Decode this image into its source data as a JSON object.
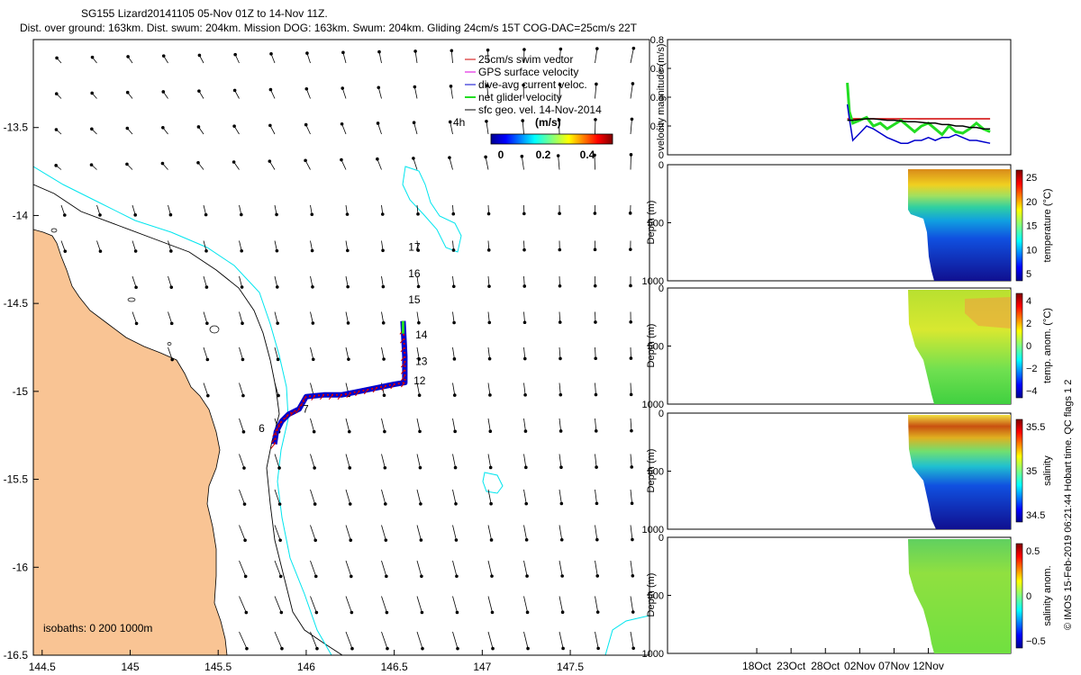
{
  "title_line1": "SG155 Lizard20141105 05-Nov 01Z to 14-Nov 11Z.",
  "title_line2": "Dist. over ground: 163km. Dist. swum: 204km. Mission DOG: 163km. Swum: 204km. Gliding 24cm/s 15T COG-DAC=25cm/s 22T",
  "colors": {
    "land": "#f9c494",
    "reef": "#00e5ee",
    "track": "#d00000",
    "dac": "#0000cc",
    "net": "#22dd22",
    "geo": "#000000"
  },
  "chart_data": [
    {
      "type": "scatter",
      "name": "map",
      "x_ticks": [
        "144.5",
        "145",
        "145.5",
        "146",
        "146.5",
        "147",
        "147.5"
      ],
      "y_ticks": [
        "-13.5",
        "-14",
        "-14.5",
        "-15",
        "-15.5",
        "-16",
        "-16.5"
      ],
      "xlim": [
        144.45,
        147.95
      ],
      "ylim": [
        -16.5,
        -13.0
      ],
      "legend": [
        {
          "label": "25cm/s swim vector",
          "color": "#d00000"
        },
        {
          "label": "GPS surface velocity",
          "color": "#dd00dd"
        },
        {
          "label": "dive-avg current veloc.",
          "color": "#0000cc"
        },
        {
          "label": "net glider velocity",
          "color": "#22dd22"
        },
        {
          "label": "sfc geo. vel. 14-Nov-2014",
          "color": "#000000"
        }
      ],
      "legend_position": "top-right",
      "legend_extra": "4h",
      "colorbar_title": "(m/s)",
      "colorbar_ticks": [
        "0",
        "0.2",
        "0.4"
      ],
      "isobath_note": "isobaths: 0   200   1000m",
      "track_lon": [
        145.82,
        145.83,
        145.86,
        145.9,
        145.96,
        146.0,
        146.1,
        146.2,
        146.3,
        146.4,
        146.5,
        146.56,
        146.56,
        146.555,
        146.55
      ],
      "track_lat": [
        -15.3,
        -15.23,
        -15.17,
        -15.13,
        -15.1,
        -15.03,
        -15.02,
        -15.02,
        -15.0,
        -14.98,
        -14.96,
        -14.95,
        -14.8,
        -14.7,
        -14.6
      ],
      "day_labels": [
        {
          "text": "6",
          "lon": 145.73,
          "lat": -15.23
        },
        {
          "text": "7",
          "lon": 145.98,
          "lat": -15.12
        },
        {
          "text": "12",
          "lon": 146.61,
          "lat": -14.96
        },
        {
          "text": "13",
          "lon": 146.62,
          "lat": -14.85
        },
        {
          "text": "14",
          "lon": 146.62,
          "lat": -14.7
        },
        {
          "text": "15",
          "lon": 146.58,
          "lat": -14.5
        },
        {
          "text": "16",
          "lon": 146.58,
          "lat": -14.35
        },
        {
          "text": "17",
          "lon": 146.58,
          "lat": -14.2
        }
      ]
    },
    {
      "type": "line",
      "name": "velocity",
      "ylabel": "velocity magnitude (m/s)",
      "y_ticks": [
        "0",
        "0.2",
        "0.4",
        "0.6",
        "0.8"
      ],
      "ylim": [
        0,
        0.8
      ],
      "x": [
        26.2,
        26.5,
        27,
        28,
        29,
        30,
        31,
        32,
        33,
        34,
        35,
        36,
        37,
        38,
        39,
        40,
        41,
        42,
        43,
        44,
        45,
        46,
        47
      ],
      "series": [
        {
          "color": "#d00000",
          "values": [
            0.25,
            0.25,
            0.25,
            0.25,
            0.25,
            0.25,
            0.25,
            0.25,
            0.25,
            0.25,
            0.25,
            0.25,
            0.25,
            0.25,
            0.25,
            0.25,
            0.25,
            0.25,
            0.25,
            0.25,
            0.25,
            0.25,
            0.25
          ]
        },
        {
          "color": "#22dd22",
          "values": [
            0.5,
            0.3,
            0.22,
            0.24,
            0.26,
            0.2,
            0.22,
            0.18,
            0.21,
            0.24,
            0.2,
            0.16,
            0.2,
            0.22,
            0.18,
            0.14,
            0.2,
            0.16,
            0.15,
            0.18,
            0.22,
            0.18,
            0.16
          ]
        },
        {
          "color": "#0000cc",
          "values": [
            0.35,
            0.25,
            0.1,
            0.15,
            0.2,
            0.18,
            0.15,
            0.12,
            0.1,
            0.08,
            0.08,
            0.1,
            0.1,
            0.12,
            0.1,
            0.12,
            0.12,
            0.14,
            0.12,
            0.1,
            0.1,
            0.09,
            0.08
          ]
        },
        {
          "color": "#000000",
          "values": [
            0.24,
            0.24,
            0.24,
            0.245,
            0.25,
            0.25,
            0.245,
            0.24,
            0.24,
            0.235,
            0.23,
            0.23,
            0.225,
            0.22,
            0.22,
            0.21,
            0.21,
            0.2,
            0.2,
            0.19,
            0.19,
            0.18,
            0.18
          ]
        }
      ],
      "x_ticks": [
        "18Oct",
        "23Oct",
        "28Oct",
        "02Nov",
        "07Nov",
        "12Nov"
      ]
    },
    {
      "type": "heatmap",
      "name": "temperature",
      "ylabel": "Depth (m)",
      "y_ticks": [
        "0",
        "500",
        "1000"
      ],
      "ylim": [
        0,
        1000
      ],
      "colorbar_label": "temperature (°C)",
      "colorbar_ticks": [
        "25",
        "20",
        "15",
        "10",
        "5"
      ],
      "clim": [
        3,
        29
      ]
    },
    {
      "type": "heatmap",
      "name": "temp-anom",
      "ylabel": "Depth (m)",
      "y_ticks": [
        "0",
        "500",
        "1000"
      ],
      "ylim": [
        0,
        1000
      ],
      "colorbar_label": "temp. anom. (°C)",
      "colorbar_ticks": [
        "4",
        "2",
        "0",
        "−2",
        "−4"
      ],
      "clim": [
        -4,
        4
      ]
    },
    {
      "type": "heatmap",
      "name": "salinity",
      "ylabel": "Depth (m)",
      "y_ticks": [
        "0",
        "500",
        "1000"
      ],
      "ylim": [
        0,
        1000
      ],
      "colorbar_label": "salinity",
      "colorbar_ticks": [
        "35.5",
        "35",
        "34.5"
      ],
      "clim": [
        34.3,
        35.9
      ]
    },
    {
      "type": "heatmap",
      "name": "salinity-anom",
      "ylabel": "Depth (m)",
      "y_ticks": [
        "0",
        "500",
        "1000"
      ],
      "ylim": [
        0,
        1000
      ],
      "colorbar_label": "salinity anom.",
      "colorbar_ticks": [
        "0.5",
        "0",
        "−0.5"
      ],
      "clim": [
        -0.5,
        0.5
      ]
    }
  ],
  "footer": "© IMOS 15-Feb-2019 06:21:44 Hobart time. QC flags 1  2"
}
